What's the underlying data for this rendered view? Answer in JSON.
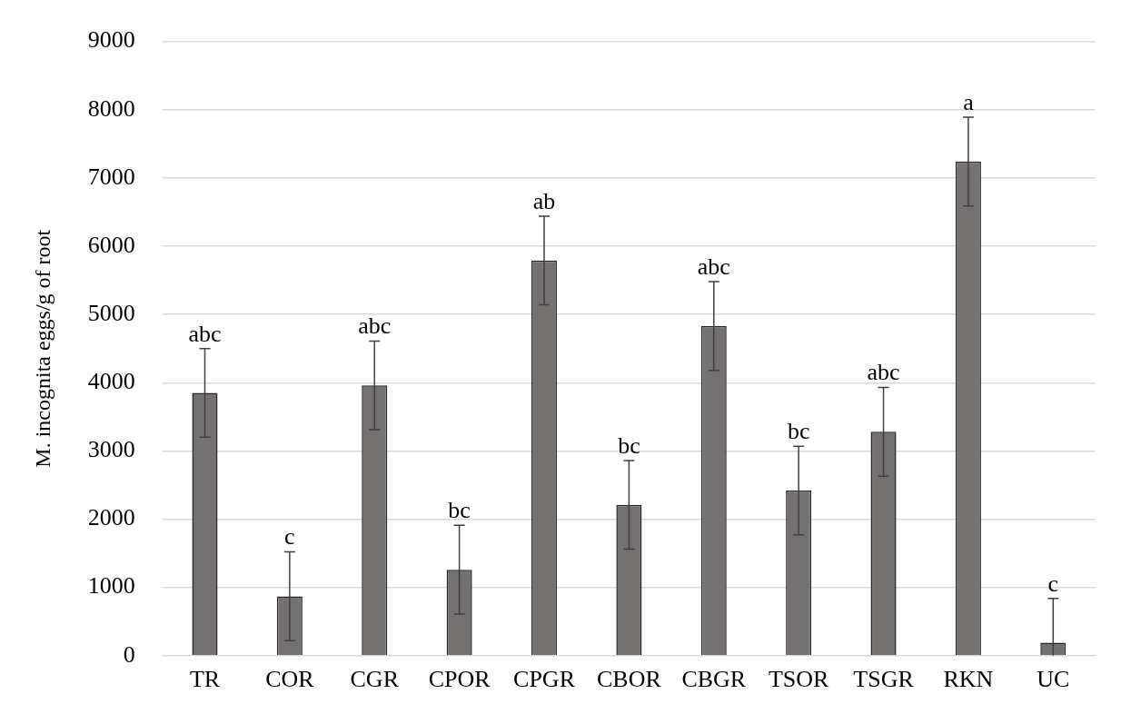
{
  "chart_data": {
    "type": "bar",
    "ylabel": "M. incognita eggs/g of root",
    "categories": [
      "TR",
      "COR",
      "CGR",
      "CPOR",
      "CPGR",
      "CBOR",
      "CBGR",
      "TSOR",
      "TSGR",
      "RKN",
      "UC"
    ],
    "values": [
      3850,
      870,
      3960,
      1260,
      5790,
      2210,
      4830,
      2420,
      3280,
      7240,
      190
    ],
    "errors": [
      650,
      650,
      650,
      650,
      650,
      650,
      650,
      650,
      650,
      650,
      [
        0,
        840
      ]
    ],
    "color": "#767171",
    "ylim": [
      0,
      9000
    ],
    "yticks": [
      0,
      1000,
      2000,
      3000,
      4000,
      5000,
      6000,
      7000,
      8000,
      9000
    ],
    "grid": "y",
    "legend": false,
    "annotations": [
      {
        "text": "abc",
        "x": "TR",
        "y": 4500
      },
      {
        "text": "c",
        "x": "COR",
        "y": 1520
      },
      {
        "text": "abc",
        "x": "CGR",
        "y": 4610
      },
      {
        "text": "bc",
        "x": "CPOR",
        "y": 1910
      },
      {
        "text": "ab",
        "x": "CPGR",
        "y": 6440
      },
      {
        "text": "bc",
        "x": "CBOR",
        "y": 2860
      },
      {
        "text": "abc",
        "x": "CBGR",
        "y": 5480
      },
      {
        "text": "bc",
        "x": "TSOR",
        "y": 3070
      },
      {
        "text": "abc",
        "x": "TSGR",
        "y": 3930
      },
      {
        "text": "a",
        "x": "RKN",
        "y": 7890
      },
      {
        "text": "c",
        "x": "UC",
        "y": 840
      }
    ]
  }
}
